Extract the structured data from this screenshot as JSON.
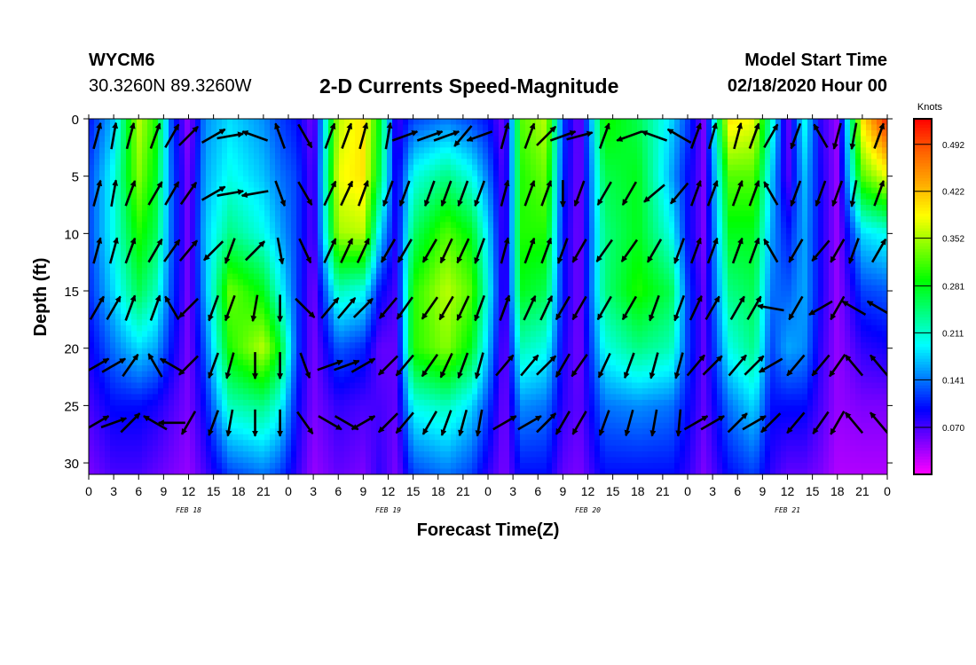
{
  "header": {
    "station": "WYCM6",
    "location": "30.3260N 89.3260W",
    "title": "2-D Currents Speed-Magnitude",
    "model_start_label": "Model Start Time",
    "model_start_value": "02/18/2020 Hour 00"
  },
  "chart_data": {
    "type": "heatmap",
    "xlabel": "Forecast Time(Z)",
    "ylabel": "Depth (ft)",
    "x_tick_labels": [
      "0",
      "3",
      "6",
      "9",
      "12",
      "15",
      "18",
      "21",
      "0",
      "3",
      "6",
      "9",
      "12",
      "15",
      "18",
      "21",
      "0",
      "3",
      "6",
      "9",
      "12",
      "15",
      "18",
      "21",
      "0",
      "3",
      "6",
      "9",
      "12",
      "15",
      "18",
      "21",
      "0"
    ],
    "date_labels": [
      "FEB 18",
      "FEB 19",
      "FEB 20",
      "FEB 21"
    ],
    "x_range_hours": [
      0,
      96
    ],
    "y_ticks": [
      0,
      5,
      10,
      15,
      20,
      25,
      30
    ],
    "y_range_ft": [
      0,
      31
    ],
    "y_inverted": true,
    "colorbar": {
      "unit": "Knots",
      "tick_labels": [
        "0.492",
        "0.422",
        "0.352",
        "0.281",
        "0.211",
        "0.141",
        "0.070"
      ],
      "range": [
        0,
        0.53
      ],
      "colors": [
        "#ff00ff",
        "#8000ff",
        "#0000ff",
        "#0080ff",
        "#00ffff",
        "#00ff80",
        "#00ff00",
        "#80ff00",
        "#ffff00",
        "#ffaa00",
        "#ff6000",
        "#ff0000"
      ]
    },
    "speed_profiles": [
      {
        "hour": 0,
        "speeds": [
          0.1,
          0.12,
          0.12,
          0.11,
          0.09,
          0.07,
          0.05
        ]
      },
      {
        "hour": 3,
        "speeds": [
          0.17,
          0.2,
          0.2,
          0.18,
          0.14,
          0.1,
          0.07
        ]
      },
      {
        "hour": 6,
        "speeds": [
          0.36,
          0.34,
          0.3,
          0.26,
          0.18,
          0.1,
          0.07
        ]
      },
      {
        "hour": 8,
        "speeds": [
          0.3,
          0.28,
          0.26,
          0.22,
          0.16,
          0.09,
          0.06
        ]
      },
      {
        "hour": 10,
        "speeds": [
          0.12,
          0.13,
          0.13,
          0.12,
          0.1,
          0.07,
          0.05
        ]
      },
      {
        "hour": 12,
        "speeds": [
          0.04,
          0.05,
          0.05,
          0.05,
          0.05,
          0.05,
          0.04
        ]
      },
      {
        "hour": 14,
        "speeds": [
          0.15,
          0.16,
          0.17,
          0.16,
          0.13,
          0.1,
          0.07
        ]
      },
      {
        "hour": 17,
        "speeds": [
          0.18,
          0.2,
          0.24,
          0.33,
          0.3,
          0.22,
          0.12
        ]
      },
      {
        "hour": 21,
        "speeds": [
          0.15,
          0.17,
          0.2,
          0.28,
          0.36,
          0.24,
          0.14
        ]
      },
      {
        "hour": 23,
        "speeds": [
          0.12,
          0.14,
          0.16,
          0.2,
          0.28,
          0.2,
          0.12
        ]
      },
      {
        "hour": 25,
        "speeds": [
          0.1,
          0.12,
          0.12,
          0.12,
          0.12,
          0.1,
          0.08
        ]
      },
      {
        "hour": 27,
        "speeds": [
          0.05,
          0.06,
          0.06,
          0.05,
          0.05,
          0.05,
          0.04
        ]
      },
      {
        "hour": 30,
        "speeds": [
          0.36,
          0.38,
          0.35,
          0.22,
          0.13,
          0.08,
          0.06
        ]
      },
      {
        "hour": 33,
        "speeds": [
          0.4,
          0.4,
          0.36,
          0.2,
          0.11,
          0.07,
          0.05
        ]
      },
      {
        "hour": 35,
        "speeds": [
          0.28,
          0.26,
          0.18,
          0.1,
          0.06,
          0.07,
          0.08
        ]
      },
      {
        "hour": 37,
        "speeds": [
          0.07,
          0.08,
          0.08,
          0.07,
          0.06,
          0.06,
          0.05
        ]
      },
      {
        "hour": 39,
        "speeds": [
          0.12,
          0.2,
          0.25,
          0.3,
          0.3,
          0.2,
          0.12
        ]
      },
      {
        "hour": 43,
        "speeds": [
          0.14,
          0.24,
          0.32,
          0.36,
          0.34,
          0.22,
          0.14
        ]
      },
      {
        "hour": 46,
        "speeds": [
          0.12,
          0.2,
          0.28,
          0.32,
          0.28,
          0.18,
          0.12
        ]
      },
      {
        "hour": 48,
        "speeds": [
          0.1,
          0.14,
          0.18,
          0.2,
          0.17,
          0.12,
          0.08
        ]
      },
      {
        "hour": 50,
        "speeds": [
          0.05,
          0.06,
          0.06,
          0.06,
          0.05,
          0.05,
          0.05
        ]
      },
      {
        "hour": 52,
        "speeds": [
          0.32,
          0.3,
          0.3,
          0.28,
          0.22,
          0.15,
          0.1
        ]
      },
      {
        "hour": 55,
        "speeds": [
          0.36,
          0.33,
          0.3,
          0.26,
          0.2,
          0.14,
          0.1
        ]
      },
      {
        "hour": 57,
        "speeds": [
          0.12,
          0.11,
          0.1,
          0.1,
          0.09,
          0.08,
          0.06
        ]
      },
      {
        "hour": 59,
        "speeds": [
          0.05,
          0.05,
          0.05,
          0.05,
          0.05,
          0.06,
          0.05
        ]
      },
      {
        "hour": 62,
        "speeds": [
          0.3,
          0.26,
          0.24,
          0.24,
          0.2,
          0.14,
          0.1
        ]
      },
      {
        "hour": 66,
        "speeds": [
          0.26,
          0.28,
          0.28,
          0.3,
          0.24,
          0.15,
          0.1
        ]
      },
      {
        "hour": 70,
        "speeds": [
          0.18,
          0.16,
          0.2,
          0.26,
          0.22,
          0.14,
          0.1
        ]
      },
      {
        "hour": 72,
        "speeds": [
          0.12,
          0.1,
          0.1,
          0.12,
          0.12,
          0.1,
          0.08
        ]
      },
      {
        "hour": 74,
        "speeds": [
          0.05,
          0.05,
          0.05,
          0.06,
          0.06,
          0.06,
          0.05
        ]
      },
      {
        "hour": 77,
        "speeds": [
          0.4,
          0.32,
          0.28,
          0.24,
          0.2,
          0.14,
          0.1
        ]
      },
      {
        "hour": 80,
        "speeds": [
          0.38,
          0.32,
          0.28,
          0.26,
          0.24,
          0.18,
          0.12
        ]
      },
      {
        "hour": 82,
        "speeds": [
          0.22,
          0.18,
          0.16,
          0.14,
          0.12,
          0.1,
          0.08
        ]
      },
      {
        "hour": 84,
        "speeds": [
          0.05,
          0.06,
          0.1,
          0.13,
          0.16,
          0.1,
          0.06
        ]
      },
      {
        "hour": 86,
        "speeds": [
          0.2,
          0.17,
          0.16,
          0.16,
          0.15,
          0.1,
          0.06
        ]
      },
      {
        "hour": 88,
        "speeds": [
          0.08,
          0.09,
          0.09,
          0.09,
          0.08,
          0.07,
          0.05
        ]
      },
      {
        "hour": 90,
        "speeds": [
          0.04,
          0.04,
          0.04,
          0.04,
          0.04,
          0.04,
          0.03
        ]
      },
      {
        "hour": 93,
        "speeds": [
          0.4,
          0.32,
          0.18,
          0.12,
          0.08,
          0.05,
          0.03
        ]
      },
      {
        "hour": 96,
        "speeds": [
          0.52,
          0.38,
          0.2,
          0.13,
          0.09,
          0.05,
          0.03
        ]
      }
    ],
    "vector_rows_depth_ft": [
      1.5,
      6.5,
      11.5,
      16.5,
      21.5,
      26.5
    ],
    "vector_columns": [
      {
        "hour": 1,
        "dirs_deg": [
          15,
          15,
          15,
          30,
          60,
          60
        ]
      },
      {
        "hour": 3,
        "dirs_deg": [
          10,
          10,
          15,
          30,
          60,
          70
        ]
      },
      {
        "hour": 5,
        "dirs_deg": [
          15,
          20,
          20,
          20,
          35,
          45
        ]
      },
      {
        "hour": 8,
        "dirs_deg": [
          20,
          30,
          30,
          20,
          330,
          300
        ]
      },
      {
        "hour": 10,
        "dirs_deg": [
          30,
          30,
          35,
          330,
          300,
          270
        ]
      },
      {
        "hour": 12,
        "dirs_deg": [
          45,
          35,
          40,
          225,
          225,
          210
        ]
      },
      {
        "hour": 15,
        "dirs_deg": [
          60,
          60,
          225,
          200,
          200,
          200
        ]
      },
      {
        "hour": 17,
        "dirs_deg": [
          80,
          80,
          200,
          200,
          195,
          190
        ]
      },
      {
        "hour": 20,
        "dirs_deg": [
          290,
          260,
          45,
          190,
          180,
          180
        ]
      },
      {
        "hour": 23,
        "dirs_deg": [
          340,
          160,
          170,
          180,
          180,
          180
        ]
      },
      {
        "hour": 26,
        "dirs_deg": [
          150,
          150,
          155,
          135,
          160,
          145
        ]
      },
      {
        "hour": 29,
        "dirs_deg": [
          20,
          25,
          25,
          40,
          70,
          120
        ]
      },
      {
        "hour": 31,
        "dirs_deg": [
          20,
          25,
          25,
          40,
          70,
          120
        ]
      },
      {
        "hour": 33,
        "dirs_deg": [
          15,
          20,
          25,
          45,
          60,
          60
        ]
      },
      {
        "hour": 36,
        "dirs_deg": [
          10,
          200,
          210,
          220,
          225,
          225
        ]
      },
      {
        "hour": 38,
        "dirs_deg": [
          70,
          200,
          210,
          215,
          220,
          220
        ]
      },
      {
        "hour": 41,
        "dirs_deg": [
          70,
          200,
          210,
          215,
          215,
          210
        ]
      },
      {
        "hour": 43,
        "dirs_deg": [
          70,
          200,
          205,
          210,
          205,
          200
        ]
      },
      {
        "hour": 45,
        "dirs_deg": [
          220,
          200,
          205,
          205,
          200,
          195
        ]
      },
      {
        "hour": 47,
        "dirs_deg": [
          250,
          200,
          200,
          200,
          195,
          190
        ]
      },
      {
        "hour": 50,
        "dirs_deg": [
          15,
          15,
          15,
          20,
          40,
          60
        ]
      },
      {
        "hour": 53,
        "dirs_deg": [
          20,
          20,
          20,
          25,
          40,
          60
        ]
      },
      {
        "hour": 55,
        "dirs_deg": [
          45,
          20,
          20,
          25,
          45,
          45
        ]
      },
      {
        "hour": 57,
        "dirs_deg": [
          70,
          180,
          200,
          210,
          210,
          210
        ]
      },
      {
        "hour": 59,
        "dirs_deg": [
          75,
          200,
          210,
          210,
          215,
          210
        ]
      },
      {
        "hour": 62,
        "dirs_deg": [
          20,
          210,
          215,
          210,
          205,
          200
        ]
      },
      {
        "hour": 65,
        "dirs_deg": [
          250,
          210,
          215,
          210,
          200,
          195
        ]
      },
      {
        "hour": 68,
        "dirs_deg": [
          290,
          230,
          210,
          200,
          195,
          190
        ]
      },
      {
        "hour": 71,
        "dirs_deg": [
          300,
          220,
          200,
          200,
          195,
          185
        ]
      },
      {
        "hour": 73,
        "dirs_deg": [
          20,
          20,
          20,
          25,
          40,
          60
        ]
      },
      {
        "hour": 75,
        "dirs_deg": [
          15,
          20,
          20,
          30,
          45,
          60
        ]
      },
      {
        "hour": 78,
        "dirs_deg": [
          15,
          20,
          20,
          30,
          40,
          45
        ]
      },
      {
        "hour": 80,
        "dirs_deg": [
          20,
          20,
          20,
          30,
          45,
          60
        ]
      },
      {
        "hour": 82,
        "dirs_deg": [
          30,
          330,
          330,
          280,
          240,
          225
        ]
      },
      {
        "hour": 85,
        "dirs_deg": [
          200,
          200,
          210,
          210,
          220,
          220
        ]
      },
      {
        "hour": 88,
        "dirs_deg": [
          330,
          200,
          220,
          240,
          220,
          215
        ]
      },
      {
        "hour": 90,
        "dirs_deg": [
          195,
          200,
          210,
          210,
          215,
          210
        ]
      },
      {
        "hour": 92,
        "dirs_deg": [
          190,
          190,
          200,
          300,
          320,
          320
        ]
      },
      {
        "hour": 95,
        "dirs_deg": [
          20,
          20,
          30,
          300,
          320,
          320
        ]
      }
    ]
  }
}
